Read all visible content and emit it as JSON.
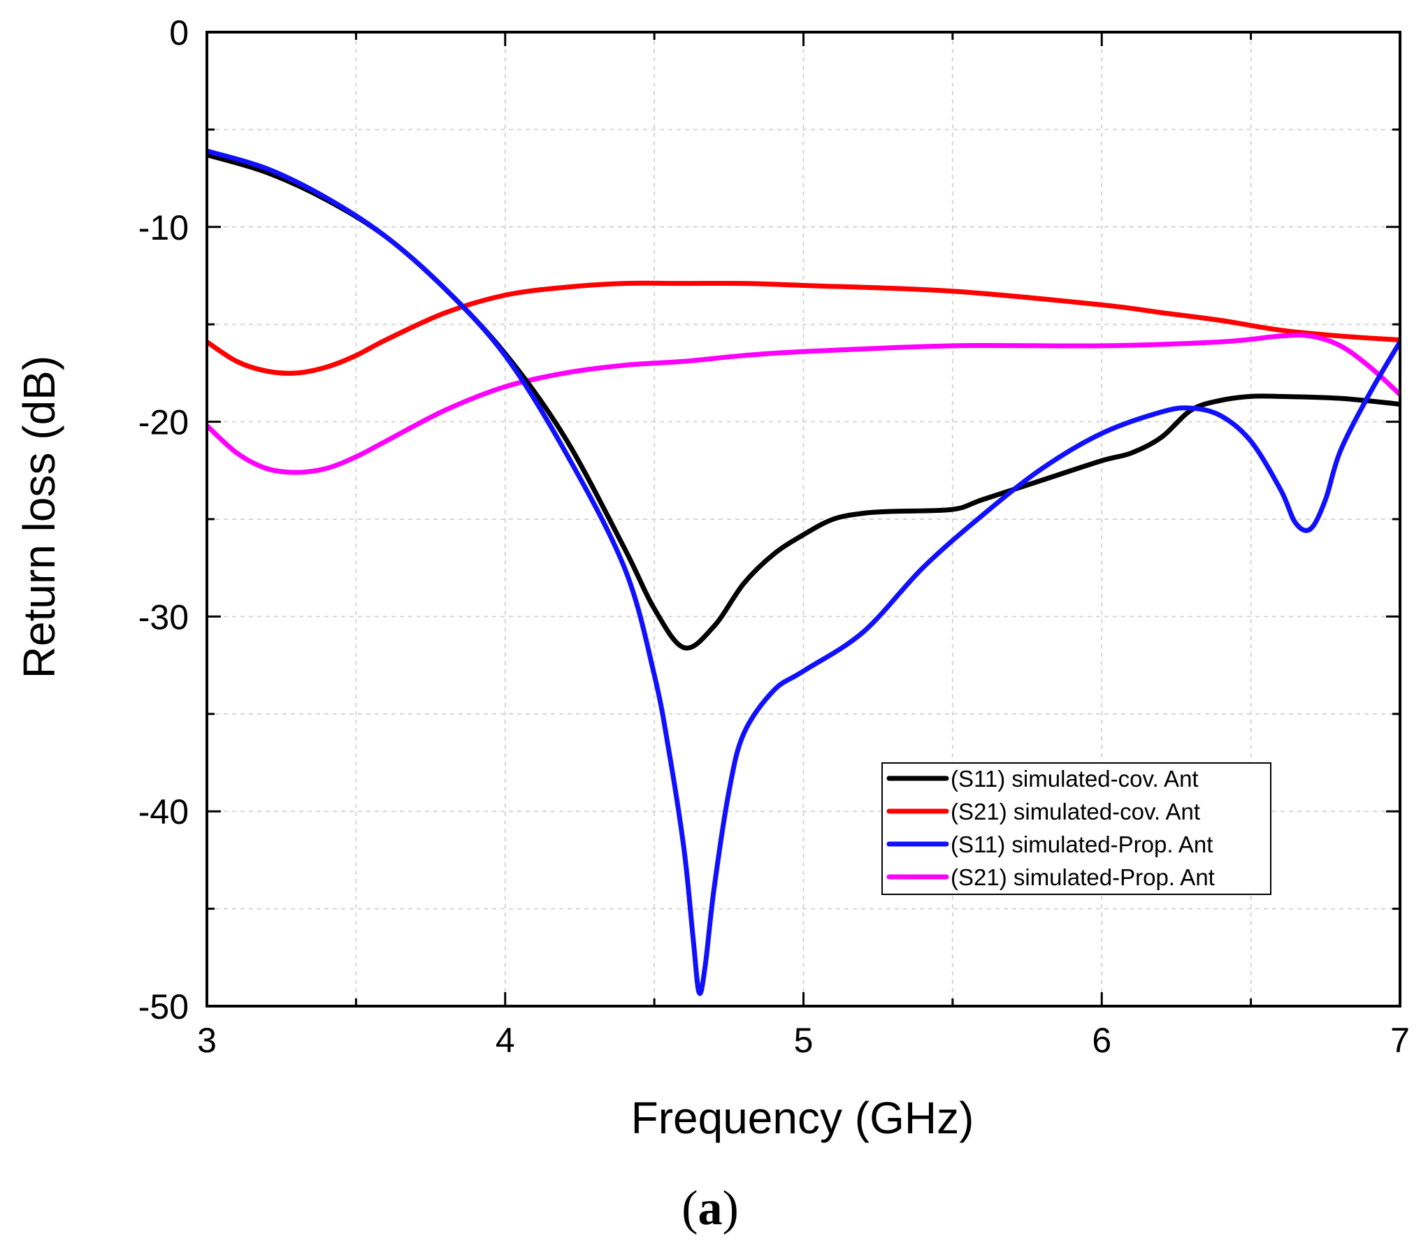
{
  "chart_data": {
    "type": "line",
    "title": "",
    "caption": {
      "open": "(",
      "letter": "a",
      "close": ")"
    },
    "xlabel": "Frequency (GHz)",
    "ylabel": "Return loss (dB)",
    "xlim": [
      3,
      7
    ],
    "ylim": [
      -50,
      0
    ],
    "xticks": [
      3,
      4,
      5,
      6,
      7
    ],
    "yticks": [
      0,
      -10,
      -20,
      -30,
      -40,
      -50
    ],
    "xtick_labels": [
      "3",
      "4",
      "5",
      "6",
      "7"
    ],
    "ytick_labels": [
      "0",
      "-10",
      "-20",
      "-30",
      "-40",
      "-50"
    ],
    "grid": true,
    "legend_position": "lower-right",
    "series": [
      {
        "name": "(S11) simulated-cov. Ant",
        "color": "#000000",
        "x": [
          3.0,
          3.2,
          3.4,
          3.6,
          3.8,
          4.0,
          4.2,
          4.4,
          4.5,
          4.6,
          4.7,
          4.8,
          4.9,
          5.0,
          5.1,
          5.2,
          5.3,
          5.5,
          5.6,
          5.8,
          6.0,
          6.1,
          6.2,
          6.3,
          6.4,
          6.5,
          6.6,
          6.8,
          7.0
        ],
        "y": [
          -6.3,
          -7.2,
          -8.6,
          -10.5,
          -13.2,
          -16.5,
          -20.8,
          -26.5,
          -29.6,
          -31.6,
          -30.5,
          -28.3,
          -26.8,
          -25.8,
          -25.0,
          -24.7,
          -24.6,
          -24.5,
          -24.0,
          -23.0,
          -22.0,
          -21.6,
          -20.8,
          -19.4,
          -18.9,
          -18.7,
          -18.7,
          -18.8,
          -19.1
        ]
      },
      {
        "name": "(S21) simulated-cov. Ant",
        "color": "#ff0000",
        "x": [
          3.0,
          3.1,
          3.2,
          3.3,
          3.4,
          3.5,
          3.6,
          3.8,
          4.0,
          4.2,
          4.4,
          4.6,
          4.8,
          5.0,
          5.5,
          6.0,
          6.2,
          6.4,
          6.6,
          6.8,
          7.0
        ],
        "y": [
          -15.9,
          -16.9,
          -17.4,
          -17.5,
          -17.2,
          -16.6,
          -15.8,
          -14.4,
          -13.5,
          -13.1,
          -12.9,
          -12.9,
          -12.9,
          -13.0,
          -13.3,
          -14.0,
          -14.4,
          -14.8,
          -15.3,
          -15.6,
          -15.8
        ]
      },
      {
        "name": "(S11) simulated-Prop. Ant",
        "color": "#1010ff",
        "x": [
          3.0,
          3.2,
          3.4,
          3.6,
          3.8,
          4.0,
          4.2,
          4.4,
          4.5,
          4.55,
          4.6,
          4.63,
          4.65,
          4.67,
          4.7,
          4.75,
          4.8,
          4.9,
          5.0,
          5.2,
          5.4,
          5.6,
          5.8,
          6.0,
          6.2,
          6.3,
          6.4,
          6.5,
          6.6,
          6.65,
          6.7,
          6.75,
          6.8,
          6.9,
          7.0
        ],
        "y": [
          -6.1,
          -7.0,
          -8.5,
          -10.5,
          -13.2,
          -16.6,
          -21.5,
          -27.5,
          -33.0,
          -37.0,
          -42.0,
          -46.5,
          -49.3,
          -48.0,
          -44.0,
          -39.0,
          -36.0,
          -33.8,
          -32.8,
          -30.8,
          -27.5,
          -24.8,
          -22.4,
          -20.6,
          -19.5,
          -19.3,
          -19.7,
          -21.0,
          -23.5,
          -25.2,
          -25.5,
          -24.0,
          -21.5,
          -18.5,
          -15.9
        ]
      },
      {
        "name": "(S21) simulated-Prop. Ant",
        "color": "#ff00ff",
        "x": [
          3.0,
          3.1,
          3.2,
          3.3,
          3.4,
          3.5,
          3.6,
          3.8,
          4.0,
          4.2,
          4.4,
          4.6,
          4.8,
          5.0,
          5.5,
          6.0,
          6.4,
          6.6,
          6.7,
          6.8,
          6.9,
          7.0
        ],
        "y": [
          -20.2,
          -21.6,
          -22.4,
          -22.6,
          -22.4,
          -21.8,
          -21.0,
          -19.4,
          -18.2,
          -17.5,
          -17.1,
          -16.9,
          -16.6,
          -16.4,
          -16.1,
          -16.1,
          -15.9,
          -15.6,
          -15.6,
          -16.1,
          -17.2,
          -18.6
        ]
      }
    ]
  }
}
